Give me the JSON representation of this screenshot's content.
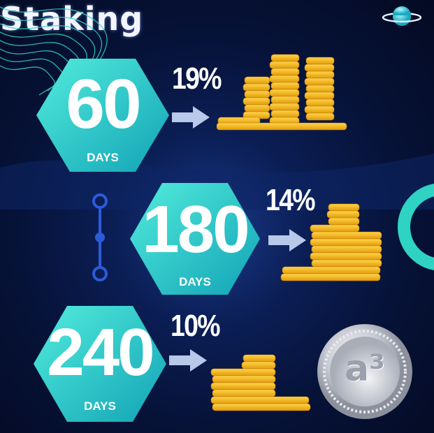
{
  "title": "Staking",
  "tiers": [
    {
      "days_value": "60",
      "days_label": "DAYS",
      "rate": "19%"
    },
    {
      "days_value": "180",
      "days_label": "DAYS",
      "rate": "14%"
    },
    {
      "days_value": "240",
      "days_label": "DAYS",
      "rate": "10%"
    }
  ],
  "coin_logo_text": "a³",
  "colors": {
    "hex_light": "#3fe3d6",
    "hex_dark": "#13a8b8",
    "background": "#0b1e55",
    "arrow": "#b8c8e8",
    "gold": "#f2b51c"
  },
  "icons": [
    "planet-icon",
    "arrow-right-icon",
    "gold-coins-icon",
    "silver-coin-icon",
    "timeline-icon",
    "ring-decoration"
  ]
}
